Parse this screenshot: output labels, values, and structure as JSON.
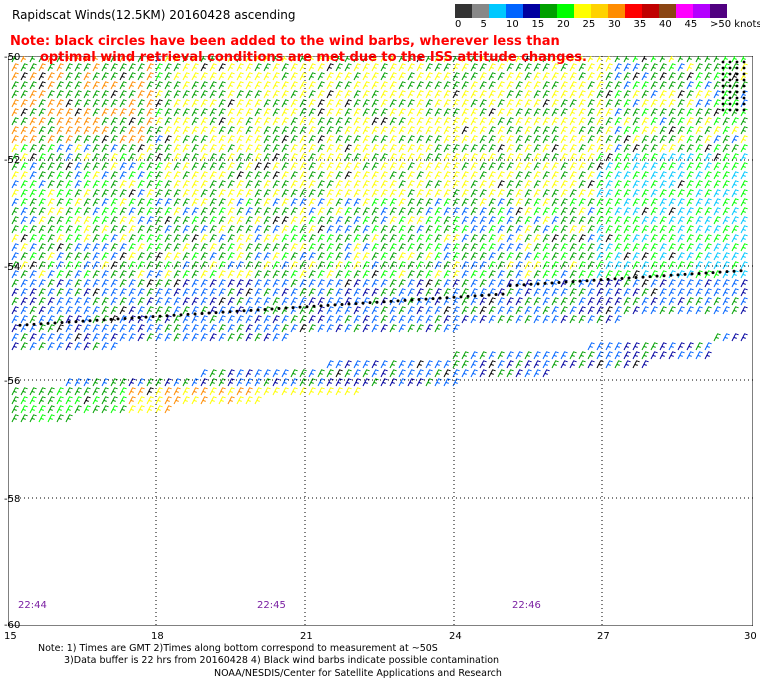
{
  "header": {
    "title": "Rapidscat Winds(12.5KM) 20160428 ascending",
    "note_line1": "Note: black circles have been added to the wind barbs, wherever less than",
    "note_line2": "optimal wind retrieval conditions are met due to the ISS attitude changes."
  },
  "legend": {
    "colors": [
      "#333333",
      "#888888",
      "#00c8ff",
      "#0064ff",
      "#0000a0",
      "#00a000",
      "#00ff00",
      "#ffff00",
      "#ffd200",
      "#ff8c00",
      "#ff0000",
      "#c00000",
      "#8b4513",
      "#ff00ff",
      "#b400ff",
      "#500080"
    ],
    "labels": [
      "0",
      "5",
      "10",
      "15",
      "20",
      "25",
      "30",
      "35",
      "40",
      "45",
      ">50 knots"
    ]
  },
  "axes": {
    "lat_labels": [
      "-50",
      "-52",
      "-54",
      "-56",
      "-58",
      "-60"
    ],
    "lon_labels": [
      "15",
      "18",
      "21",
      "24",
      "27",
      "30"
    ]
  },
  "times": [
    "22:44",
    "22:45",
    "22:46"
  ],
  "footer": {
    "note1": "Note: 1) Times are GMT 2)Times along bottom correspond to measurement at ~50S",
    "note2": "3)Data buffer is 22 hrs from 20160428 4) Black wind barbs indicate possible contamination",
    "credit": "NOAA/NESDIS/Center for Satellite Applications and Research"
  }
}
